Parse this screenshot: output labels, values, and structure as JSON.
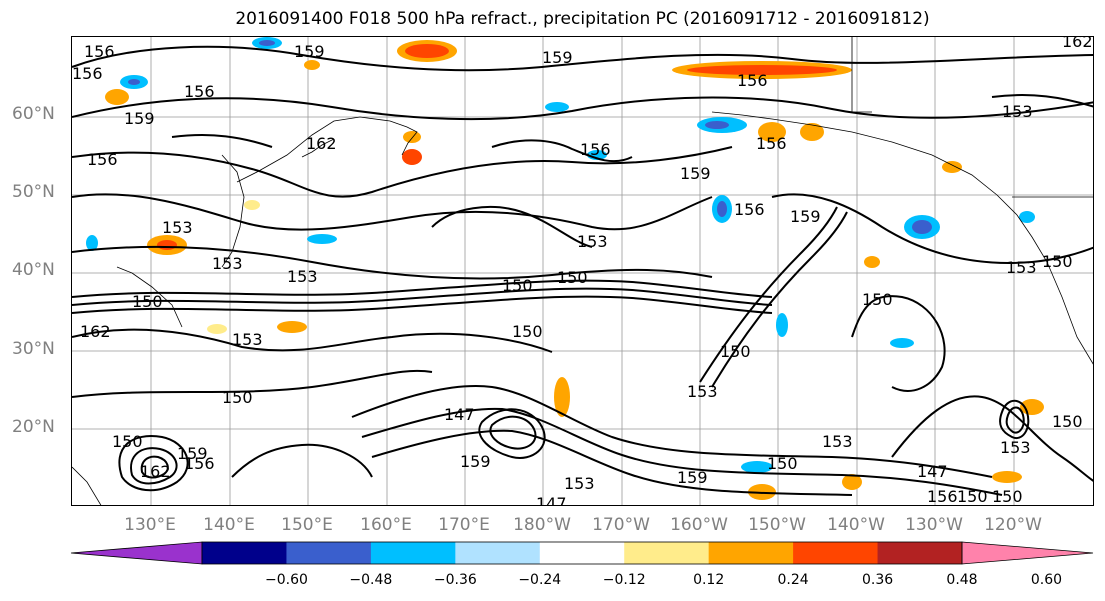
{
  "title": "2016091400 F018 500 hPa refract., precipitation PC (2016091712 - 2016091812)",
  "lat_labels": [
    "60°N",
    "50°N",
    "40°N",
    "30°N",
    "20°N"
  ],
  "lon_labels": [
    "130°E",
    "140°E",
    "150°E",
    "160°E",
    "170°E",
    "180°W",
    "170°W",
    "160°W",
    "150°W",
    "140°W",
    "130°W",
    "120°W"
  ],
  "colorbar": {
    "ticks": [
      "−0.60",
      "−0.48",
      "−0.36",
      "−0.24",
      "−0.12",
      "0.12",
      "0.24",
      "0.36",
      "0.48",
      "0.60"
    ],
    "colors": [
      "#9a32cd",
      "#00008b",
      "#3a5fcd",
      "#00bfff",
      "#b0e2ff",
      "#ffffff",
      "#ffec8b",
      "#ffa500",
      "#ff4500",
      "#b22222",
      "#ff82ab"
    ]
  },
  "contour_labels": [
    "156",
    "159",
    "156",
    "159",
    "162",
    "156",
    "156",
    "153",
    "159",
    "153",
    "150",
    "162",
    "153",
    "150",
    "147",
    "150",
    "153",
    "150",
    "159",
    "162",
    "156",
    "159",
    "147",
    "159",
    "153",
    "150",
    "150",
    "153",
    "159",
    "156",
    "150",
    "153",
    "150",
    "147",
    "153",
    "156",
    "150",
    "150",
    "153",
    "150",
    "153",
    "150",
    "159",
    "156",
    "153",
    "162",
    "156",
    "150",
    "156"
  ]
}
